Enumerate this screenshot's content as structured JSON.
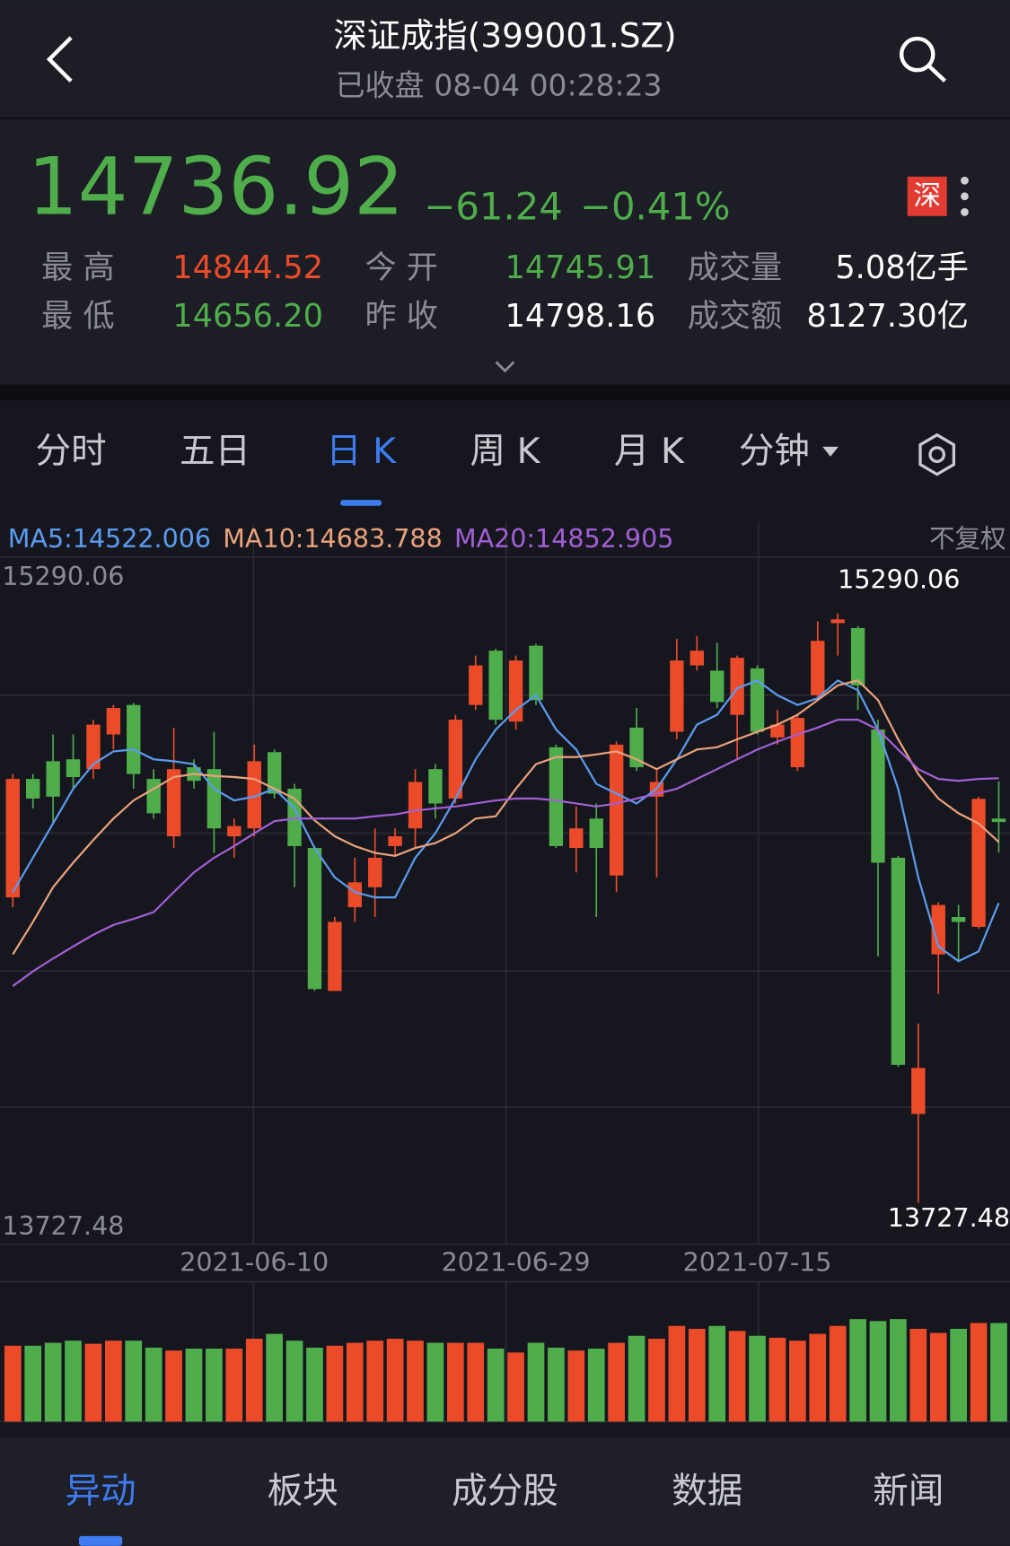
{
  "header": {
    "title": "深证成指(399001.SZ)",
    "status": "已收盘",
    "time": "08-04 00:28:23"
  },
  "quote": {
    "price": "14736.92",
    "change": "−61.24",
    "change_pct": "−0.41%",
    "exchange_badge": "深",
    "stats": [
      {
        "label": "最 高",
        "value": "14844.52"
      },
      {
        "label": "今 开",
        "value": "14745.91"
      },
      {
        "label": "成交量",
        "value": "5.08亿手"
      },
      {
        "label": "最 低",
        "value": "14656.20"
      },
      {
        "label": "昨 收",
        "value": "14798.16"
      },
      {
        "label": "成交额",
        "value": "8127.30亿"
      }
    ]
  },
  "tabs": [
    "分时",
    "五日",
    "日 K",
    "周 K",
    "月 K",
    "分钟"
  ],
  "chart_data": {
    "type": "candlestick",
    "adjust_label": "不复权",
    "up_color": "#ec4b2a",
    "down_color": "#4fad4c",
    "categories": [
      null,
      null,
      null,
      null,
      null,
      null,
      null,
      null,
      null,
      null,
      null,
      null,
      "2021-06-10",
      null,
      null,
      null,
      null,
      null,
      null,
      null,
      null,
      null,
      null,
      null,
      null,
      "2021-06-29",
      null,
      null,
      null,
      null,
      null,
      null,
      null,
      null,
      null,
      null,
      null,
      "2021-07-15",
      null,
      null,
      null,
      null,
      null,
      null,
      null,
      null,
      null,
      null,
      null,
      null
    ],
    "open": [
      14537,
      14851,
      14898,
      14903,
      14877,
      14969,
      15047,
      14851,
      14699,
      14882,
      14877,
      14699,
      14720,
      14922,
      14825,
      14668,
      14289,
      14511,
      14564,
      14673,
      14720,
      14877,
      14799,
      15047,
      15191,
      15003,
      15204,
      14935,
      14668,
      14746,
      14595,
      14987,
      14804,
      14976,
      15152,
      15138,
      15021,
      15144,
      14961,
      14882,
      15073,
      15264,
      15251,
      14982,
      14642,
      13963,
      14386,
      14485,
      14459,
      14745.91
    ],
    "high": [
      14864,
      14864,
      14969,
      14969,
      15008,
      15047,
      15052,
      14877,
      14987,
      14903,
      14976,
      14746,
      14942,
      14929,
      14838,
      14673,
      14485,
      14642,
      14720,
      14720,
      14877,
      14890,
      15021,
      15178,
      15196,
      15178,
      15209,
      14942,
      14778,
      14786,
      14950,
      15039,
      14877,
      15222,
      15230,
      15212,
      15178,
      15152,
      15034,
      15021,
      15269,
      15290.06,
      15256,
      15008,
      14647,
      14203,
      14524,
      14517,
      14804,
      14844.52
    ],
    "low": [
      14511,
      14773,
      14733,
      14825,
      14851,
      14929,
      14825,
      14746,
      14668,
      14825,
      14655,
      14642,
      14699,
      14799,
      14564,
      14289,
      14289,
      14472,
      14485,
      14647,
      14668,
      14746,
      14786,
      15034,
      14995,
      14982,
      15047,
      14668,
      14603,
      14485,
      14551,
      14872,
      14590,
      14956,
      15138,
      15039,
      14903,
      14969,
      14942,
      14872,
      15065,
      15178,
      15034,
      14381,
      14088,
      13727.48,
      14281,
      14368,
      14454,
      14656.2
    ],
    "close": [
      14851,
      14799,
      14804,
      14856,
      14995,
      15039,
      14864,
      14760,
      14877,
      14846,
      14720,
      14726,
      14898,
      14812,
      14673,
      14294,
      14472,
      14577,
      14642,
      14699,
      14843,
      14786,
      15008,
      15152,
      15008,
      15165,
      15060,
      14673,
      14720,
      14668,
      14942,
      14882,
      14843,
      15165,
      15191,
      15055,
      15172,
      14976,
      14995,
      15013,
      15217,
      15274,
      15099,
      14629,
      14093,
      14085,
      14517,
      14472,
      14798.16,
      14736.92
    ],
    "volume": [
      3.91,
      3.91,
      4.06,
      4.17,
      4.01,
      4.17,
      4.17,
      3.81,
      3.66,
      3.76,
      3.76,
      3.76,
      4.27,
      4.52,
      4.17,
      3.81,
      3.91,
      4.06,
      4.17,
      4.27,
      4.17,
      4.06,
      4.06,
      4.06,
      3.76,
      3.56,
      4.06,
      3.81,
      3.66,
      3.76,
      4.06,
      4.42,
      4.27,
      4.93,
      4.78,
      4.93,
      4.67,
      4.42,
      4.32,
      4.17,
      4.52,
      4.93,
      5.28,
      5.18,
      5.28,
      4.78,
      4.57,
      4.78,
      5.08,
      5.08
    ],
    "ma": [
      {
        "legend": "MA5:14522.006",
        "color": "#5b9cf0",
        "values": [
          14551,
          14642,
          14733,
          14825,
          14890,
          14924,
          14929,
          14903,
          14898,
          14890,
          14825,
          14794,
          14804,
          14825,
          14773,
          14668,
          14590,
          14551,
          14537,
          14537,
          14642,
          14707,
          14799,
          14903,
          14982,
          15034,
          15073,
          14982,
          14929,
          14838,
          14812,
          14786,
          14825,
          14903,
          14995,
          15021,
          15091,
          15112,
          15073,
          15047,
          15065,
          15112,
          15086,
          14982,
          14825,
          14590,
          14407,
          14368,
          14394,
          14522.006
        ]
      },
      {
        "legend": "MA10:14683.788",
        "color": "#eba27c",
        "values": [
          14386,
          14472,
          14564,
          14629,
          14689,
          14746,
          14794,
          14825,
          14856,
          14864,
          14859,
          14856,
          14851,
          14825,
          14799,
          14741,
          14699,
          14673,
          14655,
          14647,
          14668,
          14681,
          14707,
          14746,
          14752,
          14825,
          14890,
          14909,
          14909,
          14916,
          14924,
          14903,
          14877,
          14903,
          14929,
          14935,
          14956,
          14976,
          14995,
          15021,
          15060,
          15099,
          15112,
          15060,
          14956,
          14864,
          14799,
          14760,
          14733,
          14683.788
        ]
      },
      {
        "legend": "MA20:14852.905",
        "color": "#a35fd6",
        "values": [
          14302,
          14341,
          14375,
          14407,
          14438,
          14464,
          14480,
          14498,
          14551,
          14603,
          14642,
          14673,
          14707,
          14739,
          14746,
          14746,
          14746,
          14746,
          14752,
          14757,
          14767,
          14773,
          14778,
          14786,
          14794,
          14799,
          14799,
          14794,
          14786,
          14778,
          14786,
          14799,
          14812,
          14825,
          14851,
          14877,
          14903,
          14929,
          14950,
          14969,
          14987,
          15008,
          15008,
          14982,
          14929,
          14877,
          14851,
          14846,
          14851,
          14852.905
        ]
      }
    ],
    "ylim": [
      13727.48,
      15290.06
    ],
    "yticks": [
      13727.48,
      15290.06
    ],
    "annotations": [
      "chart_data.high.41",
      "chart_data.low.45"
    ]
  },
  "nav": [
    "异动",
    "板块",
    "成分股",
    "数据",
    "新闻"
  ]
}
